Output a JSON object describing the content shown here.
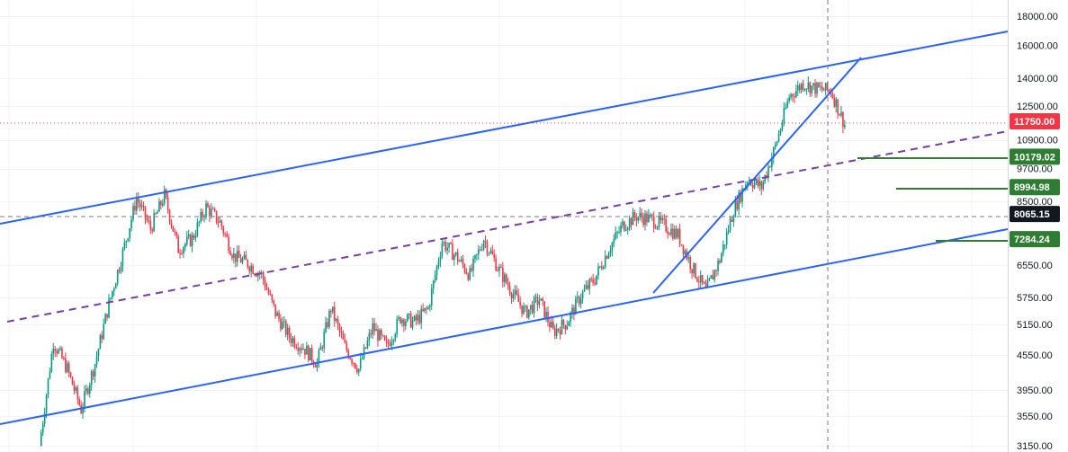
{
  "chart_data": {
    "type": "candlestick",
    "y_scale": "log",
    "ylim": [
      3150,
      18700
    ],
    "y_ticks": [
      "18000.00",
      "16000.00",
      "14000.00",
      "12500.00",
      "10900.00",
      "9700.00",
      "8500.00",
      "6550.00",
      "5750.00",
      "5150.00",
      "4550.00",
      "3950.00",
      "3550.00",
      "3150.00"
    ],
    "last_price": {
      "label": "11750.00",
      "value": 11750,
      "color": "#f23645"
    },
    "crosshair_price": {
      "label": "8065.15",
      "value": 8065.15,
      "color": "#131722"
    },
    "price_levels": [
      {
        "label": "10179.02",
        "value": 10179.02,
        "color": "#2e7d32"
      },
      {
        "label": "8994.98",
        "value": 8994.98,
        "color": "#2e7d32"
      },
      {
        "label": "7284.24",
        "value": 7284.24,
        "color": "#2e7d32"
      }
    ],
    "candle_colors": {
      "up": "#089981",
      "down": "#f23645"
    },
    "trendline_color": "#2962ff",
    "midline_color": "#7b3fa0",
    "grid": true,
    "price_path": [
      [
        0,
        3150
      ],
      [
        1,
        4800
      ],
      [
        2,
        4300
      ],
      [
        3,
        3650
      ],
      [
        4,
        4400
      ],
      [
        5,
        5600
      ],
      [
        6,
        6900
      ],
      [
        7,
        8600
      ],
      [
        8,
        7600
      ],
      [
        9,
        8700
      ],
      [
        10,
        7000
      ],
      [
        11,
        7300
      ],
      [
        12,
        8300
      ],
      [
        13,
        7800
      ],
      [
        14,
        6800
      ],
      [
        15,
        6600
      ],
      [
        16,
        6300
      ],
      [
        17,
        5400
      ],
      [
        18,
        4900
      ],
      [
        19,
        4700
      ],
      [
        20,
        4400
      ],
      [
        21,
        5500
      ],
      [
        22,
        4700
      ],
      [
        23,
        4300
      ],
      [
        24,
        5100
      ],
      [
        25,
        4700
      ],
      [
        26,
        5300
      ],
      [
        27,
        5200
      ],
      [
        28,
        5500
      ],
      [
        29,
        7200
      ],
      [
        30,
        6800
      ],
      [
        31,
        6300
      ],
      [
        32,
        7300
      ],
      [
        33,
        6500
      ],
      [
        34,
        5900
      ],
      [
        35,
        5400
      ],
      [
        36,
        5700
      ],
      [
        37,
        5000
      ],
      [
        38,
        5200
      ],
      [
        39,
        5800
      ],
      [
        40,
        6200
      ],
      [
        41,
        7000
      ],
      [
        42,
        7700
      ],
      [
        43,
        8000
      ],
      [
        44,
        7900
      ],
      [
        45,
        7700
      ],
      [
        46,
        7400
      ],
      [
        47,
        6500
      ],
      [
        48,
        5900
      ],
      [
        49,
        6700
      ],
      [
        50,
        8200
      ],
      [
        51,
        9300
      ],
      [
        52,
        9000
      ],
      [
        53,
        10600
      ],
      [
        54,
        13000
      ],
      [
        55,
        13700
      ],
      [
        56,
        13400
      ],
      [
        57,
        13300
      ],
      [
        58,
        11600
      ]
    ]
  }
}
